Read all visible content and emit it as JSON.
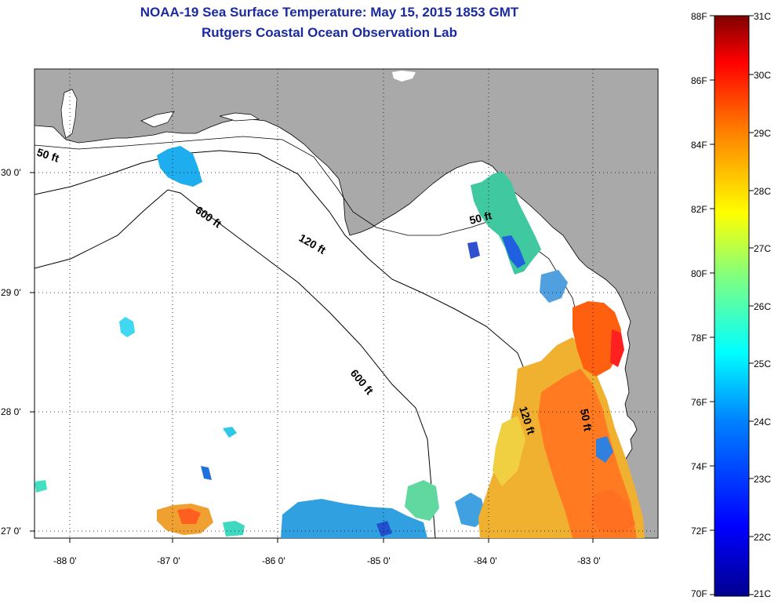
{
  "header": {
    "title": "NOAA-19 Sea Surface Temperature:  May 15, 2015 1853 GMT",
    "subtitle": "Rutgers Coastal Ocean Observation Lab"
  },
  "map": {
    "lon_ticks": [
      "-88 0'",
      "-87 0'",
      "-86 0'",
      "-85 0'",
      "-84 0'",
      "-83 0'"
    ],
    "lat_ticks": [
      "30 0'",
      "29 0'",
      "28 0'",
      "27 0'"
    ],
    "land_color": "#a9a9a9",
    "water_color": "#ffffff",
    "isobaths": [
      {
        "label": "50 ft"
      },
      {
        "label": "600 ft"
      },
      {
        "label": "120 ft"
      },
      {
        "label": "50 ft"
      },
      {
        "label": "600 ft"
      },
      {
        "label": "120 ft"
      },
      {
        "label": "50 ft"
      }
    ]
  },
  "colorbar": {
    "fahrenheit": [
      "88F",
      "86F",
      "84F",
      "82F",
      "80F",
      "78F",
      "76F",
      "74F",
      "72F",
      "70F"
    ],
    "celsius": [
      "31C",
      "30C",
      "29C",
      "28C",
      "27C",
      "26C",
      "25C",
      "24C",
      "23C",
      "22C",
      "21C"
    ],
    "colors": [
      "#00008f",
      "#0000ff",
      "#0080ff",
      "#00ffff",
      "#80ff80",
      "#ffff00",
      "#ff8000",
      "#ff0000",
      "#800000"
    ]
  }
}
